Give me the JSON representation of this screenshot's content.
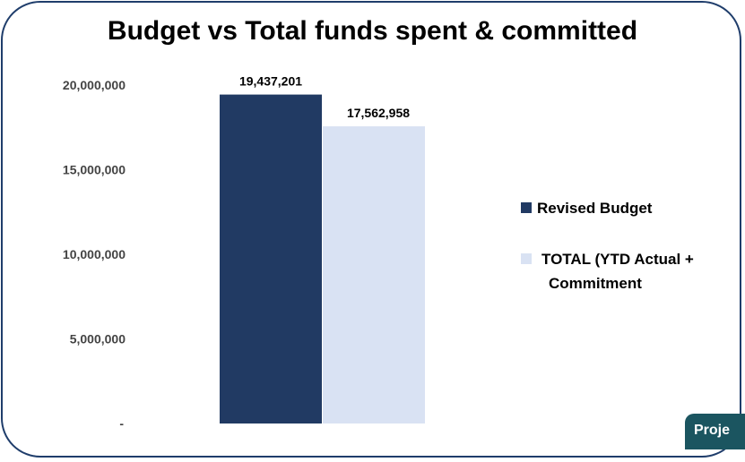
{
  "chart_data": {
    "type": "bar",
    "title": "Budget vs Total funds spent & committed",
    "categories": [
      ""
    ],
    "series": [
      {
        "name": "Revised Budget",
        "values": [
          19437201
        ],
        "color": "#213a63",
        "label": "19,437,201"
      },
      {
        "name": "TOTAL (YTD Actual + Commitment",
        "values": [
          17562958
        ],
        "color": "#d9e2f3",
        "label": "17,562,958"
      }
    ],
    "y_ticks": [
      "-",
      "5,000,000",
      "10,000,000",
      "15,000,000",
      "20,000,000"
    ],
    "ylim": [
      0,
      20000000
    ],
    "grid": false,
    "legend_position": "right"
  },
  "legend": {
    "line1": "Revised Budget",
    "line2a": "TOTAL (YTD Actual +",
    "line2b": "Commitment"
  },
  "corner_badge": "Proje",
  "colors": {
    "border": "#1f3d6b",
    "badge": "#1b5560"
  }
}
